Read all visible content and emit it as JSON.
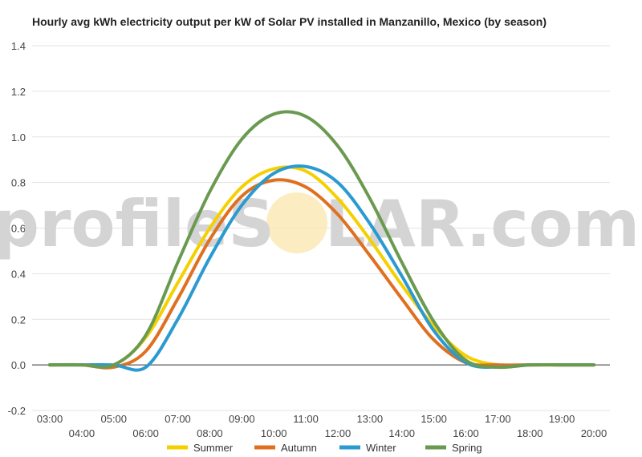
{
  "chart_data": {
    "type": "line",
    "title": "Hourly avg kWh electricity output per kW of Solar PV installed in Manzanillo, Mexico (by season)",
    "xlabel": "",
    "ylabel": "",
    "x": [
      "03:00",
      "04:00",
      "05:00",
      "06:00",
      "07:00",
      "08:00",
      "09:00",
      "10:00",
      "11:00",
      "12:00",
      "13:00",
      "14:00",
      "15:00",
      "16:00",
      "17:00",
      "18:00",
      "19:00",
      "20:00"
    ],
    "x_labels_top": [
      "03:00",
      "05:00",
      "07:00",
      "09:00",
      "11:00",
      "13:00",
      "15:00",
      "17:00",
      "19:00"
    ],
    "x_labels_bottom": [
      "04:00",
      "06:00",
      "08:00",
      "10:00",
      "12:00",
      "14:00",
      "16:00",
      "18:00",
      "20:00"
    ],
    "ylim": [
      -0.2,
      1.4
    ],
    "y_ticks": [
      "-0.2",
      "0.0",
      "0.2",
      "0.4",
      "0.6",
      "0.8",
      "1.0",
      "1.2",
      "1.4"
    ],
    "grid": true,
    "legend_position": "bottom",
    "series": [
      {
        "name": "Summer",
        "color": "#f5d000",
        "values": [
          0,
          0,
          0,
          0.12,
          0.36,
          0.6,
          0.78,
          0.86,
          0.85,
          0.73,
          0.55,
          0.35,
          0.17,
          0.04,
          0,
          0,
          0,
          0
        ]
      },
      {
        "name": "Autumn",
        "color": "#e07020",
        "values": [
          0,
          0,
          -0.01,
          0.06,
          0.29,
          0.55,
          0.74,
          0.81,
          0.78,
          0.66,
          0.48,
          0.29,
          0.11,
          0.01,
          0,
          0,
          0,
          0
        ]
      },
      {
        "name": "Winter",
        "color": "#2b9ad0",
        "values": [
          0,
          0,
          0,
          -0.01,
          0.2,
          0.47,
          0.7,
          0.84,
          0.87,
          0.8,
          0.62,
          0.39,
          0.15,
          0.01,
          -0.01,
          0,
          0,
          0
        ]
      },
      {
        "name": "Spring",
        "color": "#6a9a50",
        "values": [
          0,
          0,
          0,
          0.13,
          0.45,
          0.76,
          0.99,
          1.1,
          1.09,
          0.96,
          0.73,
          0.45,
          0.19,
          0.02,
          -0.01,
          0,
          0,
          0
        ]
      }
    ],
    "watermark": {
      "text_left": "profileS",
      "text_right": "LAR.com"
    }
  }
}
